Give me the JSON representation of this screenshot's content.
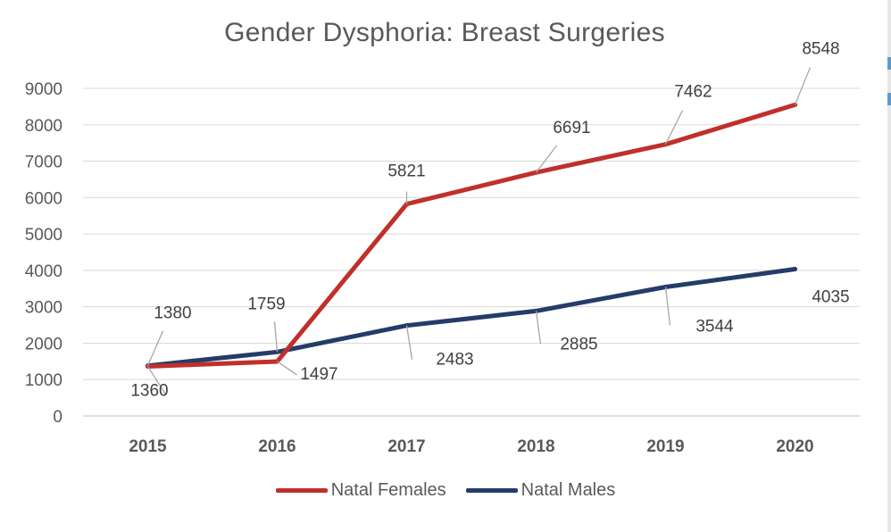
{
  "chart_data": {
    "type": "line",
    "title": "Gender Dysphoria: Breast Surgeries",
    "xlabel": "",
    "ylabel": "",
    "categories": [
      "2015",
      "2016",
      "2017",
      "2018",
      "2019",
      "2020"
    ],
    "y_ticks": [
      "0",
      "1000",
      "2000",
      "3000",
      "4000",
      "5000",
      "6000",
      "7000",
      "8000",
      "9000"
    ],
    "ylim": [
      0,
      9000
    ],
    "grid": true,
    "legend_position": "bottom",
    "series": [
      {
        "name": "Natal Females",
        "color": "#C0302B",
        "values": [
          1360,
          1497,
          5821,
          6691,
          7462,
          8548
        ],
        "labels": [
          "1360",
          "1497",
          "5821",
          "6691",
          "7462",
          "8548"
        ]
      },
      {
        "name": "Natal Males",
        "color": "#243C6A",
        "values": [
          1380,
          1759,
          2483,
          2885,
          3544,
          4035
        ],
        "labels": [
          "1380",
          "1759",
          "2483",
          "2885",
          "3544",
          "4035"
        ]
      }
    ]
  }
}
